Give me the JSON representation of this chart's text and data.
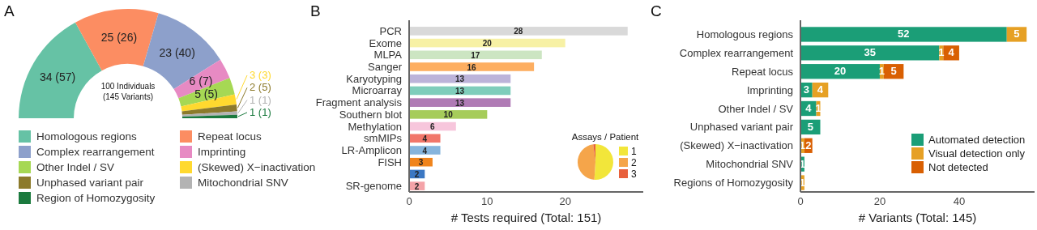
{
  "chart_data": [
    {
      "type": "donut",
      "title": "A",
      "categories": [
        "Homologous regions",
        "Repeat locus",
        "Complex rearrangement",
        "Imprinting",
        "Other Indel / SV",
        "(Skewed) X−inactivation",
        "Unphased variant pair",
        "Mitochondrial SNV",
        "Region of Homozygosity"
      ],
      "values": [
        34,
        25,
        23,
        6,
        5,
        3,
        2,
        1,
        1
      ],
      "value_labels": [
        "34 (57)",
        "25 (26)",
        "23 (40)",
        "6 (7)",
        "5 (5)",
        "3 (3)",
        "2 (5)",
        "1 (1)",
        "1 (1)"
      ],
      "colors": [
        "#66c2a5",
        "#fc8d62",
        "#8da0cb",
        "#e78ac3",
        "#a6d854",
        "#ffd92f",
        "#8c7a2b",
        "#b3b3b3",
        "#1b7a3e"
      ],
      "annotations": [
        "100 Individuals\n(145 Variants)"
      ],
      "legend": "bottom"
    },
    {
      "type": "bar",
      "title": "B",
      "orientation": "horizontal",
      "categories": [
        "PCR",
        "Exome",
        "MLPA",
        "Sanger",
        "Karyotyping",
        "Microarray",
        "Fragment analysis",
        "Southern blot",
        "Methylation",
        "smMIPs",
        "LR-Amplicon",
        "FISH",
        null,
        "SR-genome"
      ],
      "values": [
        28,
        20,
        17,
        16,
        13,
        13,
        13,
        10,
        6,
        4,
        4,
        3,
        2,
        2
      ],
      "colors": [
        "#d9d9d9",
        "#f7f1a5",
        "#cce5c2",
        "#fdae61",
        "#bcb3d9",
        "#7fcdbb",
        "#b07bb5",
        "#a6cc5a",
        "#f7c6dc",
        "#f1766a",
        "#86b4dc",
        "#f0841c",
        "#3c78c3",
        "#f4a3a8"
      ],
      "data_labels": true,
      "xlabel": "# Tests required (Total: 151)",
      "xlim": [
        0,
        30
      ],
      "xticks": [
        0,
        10,
        20
      ]
    },
    {
      "type": "pie",
      "legend_title": "Assays / Patient",
      "categories": [
        "1",
        "2",
        "3"
      ],
      "values": [
        51,
        47,
        2
      ],
      "colors": [
        "#f2e63a",
        "#f5a54a",
        "#e8603c"
      ],
      "legend": "right"
    },
    {
      "type": "bar",
      "title": "C",
      "orientation": "horizontal",
      "stacked": true,
      "categories": [
        "Homologous regions",
        "Complex rearrangement",
        "Repeat locus",
        "Imprinting",
        "Other Indel / SV",
        "Unphased variant pair",
        "(Skewed) X−inactivation",
        "Mitochondrial SNV",
        "Regions of Homozygosity"
      ],
      "series": [
        {
          "name": "Automated detection",
          "color": "#1b9e77",
          "values": [
            52,
            35,
            20,
            3,
            4,
            5,
            0,
            1,
            0
          ],
          "value_labels": [
            "52",
            "35",
            "20",
            "3",
            "4",
            "5",
            null,
            "1",
            null
          ]
        },
        {
          "name": "Visual detection only",
          "color": "#e6a024",
          "values": [
            5,
            1,
            1,
            4,
            1,
            0,
            1,
            0,
            1
          ],
          "value_labels": [
            "5",
            "1",
            "1",
            "4",
            "1",
            null,
            "1",
            null,
            "1"
          ]
        },
        {
          "name": "Not detected",
          "color": "#d95f02",
          "values": [
            0,
            4,
            5,
            0,
            0,
            0,
            2,
            0,
            0
          ],
          "value_labels": [
            null,
            "4",
            "5",
            null,
            null,
            null,
            "2",
            null,
            null
          ]
        }
      ],
      "xlabel": "# Variants (Total: 145)",
      "xlim": [
        0,
        59
      ],
      "xticks": [
        0,
        20,
        40
      ],
      "legend": "bottom right"
    }
  ]
}
